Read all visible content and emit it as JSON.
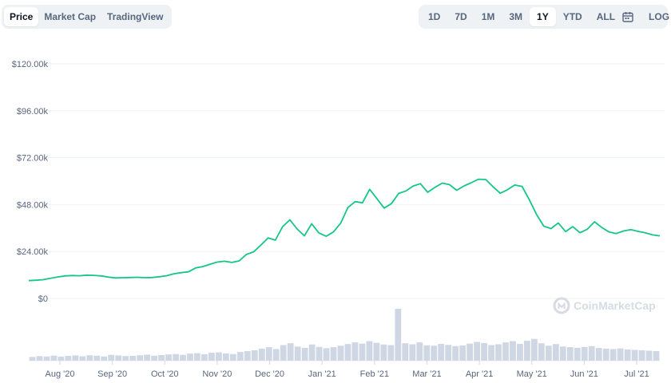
{
  "tabs_left": [
    {
      "label": "Price",
      "active": true
    },
    {
      "label": "Market Cap",
      "active": false
    },
    {
      "label": "TradingView",
      "active": false
    }
  ],
  "tabs_right": [
    {
      "label": "1D",
      "active": false
    },
    {
      "label": "7D",
      "active": false
    },
    {
      "label": "1M",
      "active": false
    },
    {
      "label": "3M",
      "active": false
    },
    {
      "label": "1Y",
      "active": true
    },
    {
      "label": "YTD",
      "active": false
    },
    {
      "label": "ALL",
      "active": false
    }
  ],
  "calendar_icon": "calendar-icon",
  "log_label": "LOG",
  "watermark": "CoinMarketCap",
  "colors": {
    "line": "#16c784",
    "grid": "#eff2f5",
    "volume": "#cfd6e4",
    "text": "#58667e",
    "watermark": "#d7dbe2"
  },
  "chart_data": {
    "type": "line",
    "title": "",
    "xlabel": "",
    "ylabel": "",
    "ylim": [
      0,
      120000
    ],
    "y_ticks": [
      0,
      24000,
      48000,
      72000,
      96000,
      120000
    ],
    "y_tick_labels": [
      "$0",
      "$24.00k",
      "$48.00k",
      "$72.00k",
      "$96.00k",
      "$120.00k"
    ],
    "x_tick_labels": [
      "Aug '20",
      "Sep '20",
      "Oct '20",
      "Nov '20",
      "Dec '20",
      "Jan '21",
      "Feb '21",
      "Mar '21",
      "Apr '21",
      "May '21",
      "Jun '21",
      "Jul '21"
    ],
    "grid": true,
    "series": [
      {
        "values": [
          9100,
          9300,
          9600,
          10300,
          11000,
          11500,
          11700,
          11600,
          11900,
          11800,
          11500,
          10900,
          10500,
          10600,
          10700,
          10800,
          10600,
          10700,
          11100,
          11600,
          12600,
          13200,
          13600,
          15600,
          16300,
          17500,
          18600,
          19000,
          18400,
          19200,
          22500,
          23800,
          27300,
          31000,
          29800,
          36700,
          40200,
          35500,
          32000,
          38200,
          33500,
          31800,
          34000,
          38500,
          46500,
          49500,
          48900,
          55800,
          51000,
          46200,
          48500,
          53700,
          55000,
          57500,
          58700,
          54300,
          56800,
          59000,
          58200,
          55300,
          57500,
          59200,
          61000,
          60800,
          57200,
          53800,
          55600,
          58000,
          57300,
          50500,
          43000,
          37000,
          35700,
          38600,
          34200,
          36700,
          33600,
          35400,
          39200,
          36300,
          34000,
          33200,
          34500,
          35200,
          34300,
          33600,
          32500,
          32000
        ]
      }
    ],
    "volume": {
      "values": [
        1.8,
        2.2,
        2.0,
        2.4,
        1.9,
        2.3,
        2.5,
        2.1,
        2.6,
        2.4,
        2.0,
        2.8,
        2.5,
        2.2,
        2.3,
        2.6,
        2.9,
        2.4,
        2.7,
        3.0,
        3.2,
        2.8,
        3.4,
        3.6,
        3.1,
        3.8,
        4.0,
        3.5,
        3.2,
        4.2,
        4.6,
        5.0,
        5.8,
        6.5,
        5.6,
        7.5,
        8.4,
        6.8,
        6.2,
        7.8,
        6.6,
        6.0,
        6.5,
        7.2,
        8.0,
        8.8,
        8.2,
        9.4,
        8.6,
        7.8,
        7.5,
        25.0,
        8.4,
        7.9,
        8.8,
        7.4,
        7.2,
        8.1,
        7.6,
        7.0,
        7.3,
        8.2,
        9.0,
        8.5,
        7.5,
        7.9,
        8.8,
        9.4,
        8.1,
        9.6,
        10.5,
        8.4,
        7.2,
        8.0,
        6.8,
        6.5,
        6.2,
        6.6,
        7.0,
        6.1,
        5.8,
        5.6,
        5.9,
        5.4,
        5.2,
        5.0,
        4.8,
        4.6
      ]
    }
  }
}
